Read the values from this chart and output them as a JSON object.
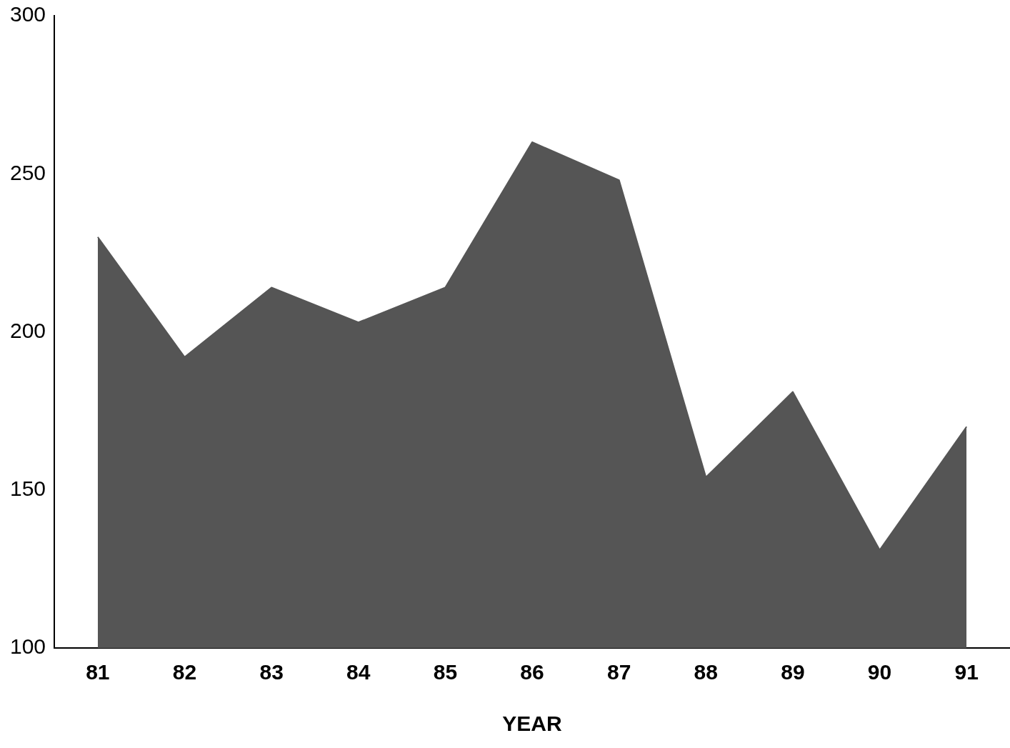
{
  "chart_data": {
    "type": "area",
    "xlabel": "YEAR",
    "categories": [
      "81",
      "82",
      "83",
      "84",
      "85",
      "86",
      "87",
      "88",
      "89",
      "90",
      "91"
    ],
    "values": [
      230,
      192,
      214,
      203,
      214,
      260,
      248,
      154,
      181,
      131,
      170
    ],
    "color": "#555555",
    "ylim": [
      100,
      300
    ],
    "yticks": [
      100,
      150,
      200,
      250,
      300
    ],
    "grid": false,
    "legend": false
  }
}
